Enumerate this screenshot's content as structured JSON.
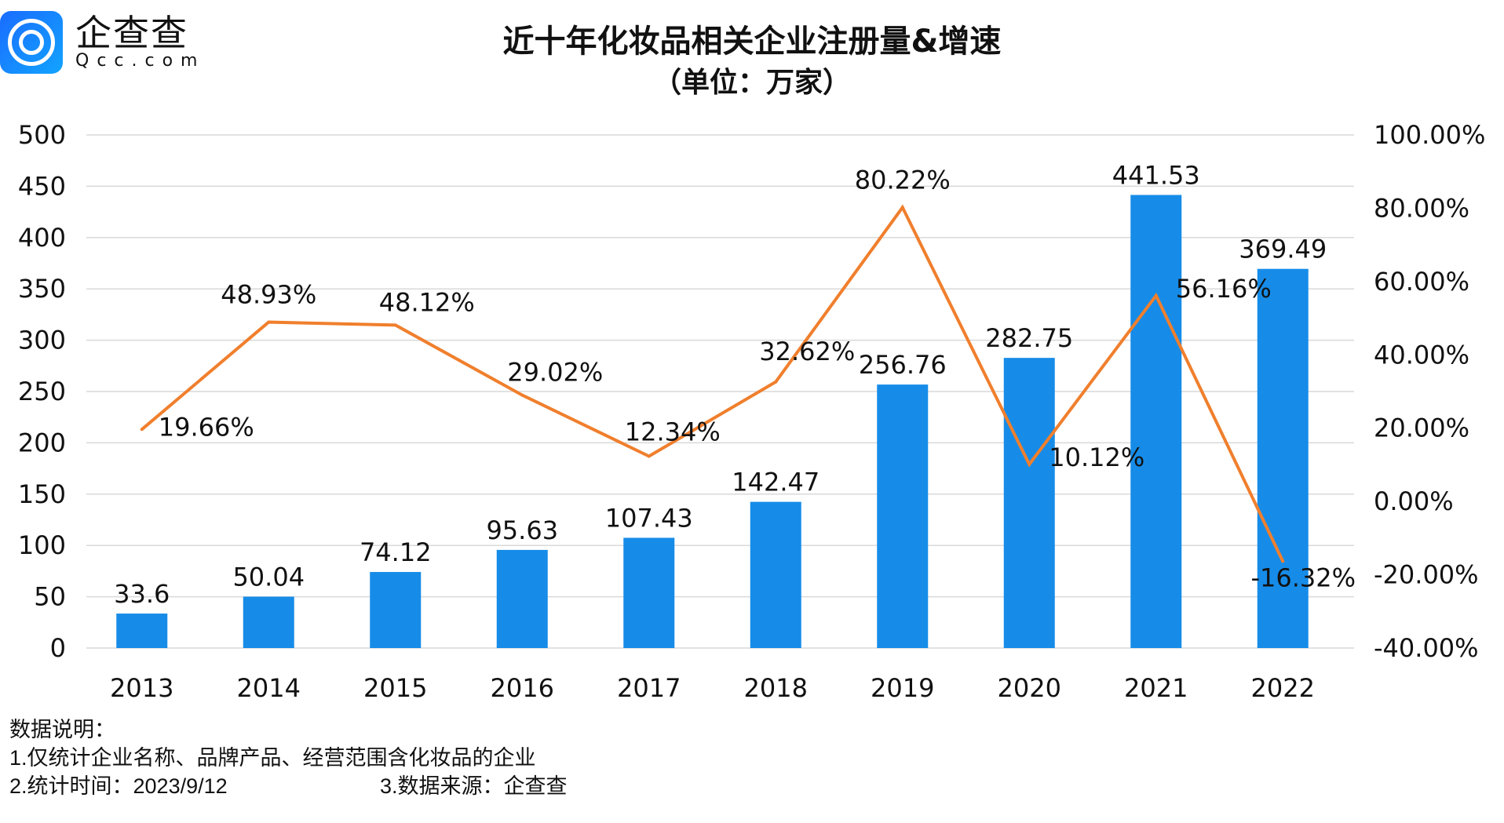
{
  "logo": {
    "cn": "企查查",
    "en": "Qcc.com"
  },
  "chart_data": {
    "type": "bar+line",
    "title": "近十年化妆品相关企业注册量&增速",
    "subtitle": "（单位：万家）",
    "categories": [
      "2013",
      "2014",
      "2015",
      "2016",
      "2017",
      "2018",
      "2019",
      "2020",
      "2021",
      "2022"
    ],
    "series": [
      {
        "type": "bar",
        "axis": "left",
        "color": "#168ce8",
        "values": [
          33.6,
          50.04,
          74.12,
          95.63,
          107.43,
          142.47,
          256.76,
          282.75,
          441.53,
          369.49
        ],
        "labels": [
          "33.6",
          "50.04",
          "74.12",
          "95.63",
          "107.43",
          "142.47",
          "256.76",
          "282.75",
          "441.53",
          "369.49"
        ]
      },
      {
        "type": "line",
        "axis": "right",
        "color": "#f07f2d",
        "values": [
          19.66,
          48.93,
          48.12,
          29.02,
          12.34,
          32.62,
          80.22,
          10.12,
          56.16,
          -16.32
        ],
        "labels": [
          "19.66%",
          "48.93%",
          "48.12%",
          "29.02%",
          "12.34%",
          "32.62%",
          "80.22%",
          "10.12%",
          "56.16%",
          "-16.32%"
        ]
      }
    ],
    "y_left": {
      "range": [
        0,
        500
      ],
      "ticks": [
        "0",
        "50",
        "100",
        "150",
        "200",
        "250",
        "300",
        "350",
        "400",
        "450",
        "500"
      ]
    },
    "y_right": {
      "range": [
        -40,
        100
      ],
      "ticks": [
        "-40.00%",
        "-20.00%",
        "0.00%",
        "20.00%",
        "40.00%",
        "60.00%",
        "80.00%",
        "100.00%"
      ]
    },
    "grid": true,
    "legend": "none"
  },
  "notes": {
    "heading": "数据说明：",
    "line1": "1.仅统计企业名称、品牌产品、经营范围含化妆品的企业",
    "line2a": "2.统计时间：2023/9/12",
    "line2b": "3.数据来源：企查查"
  }
}
